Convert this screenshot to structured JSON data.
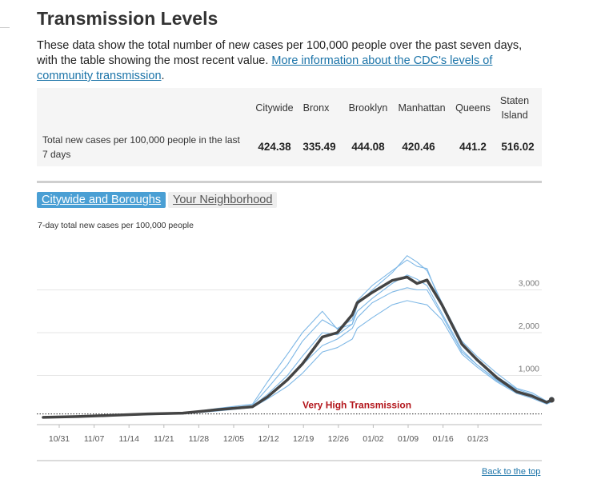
{
  "title": "Transmission Levels",
  "intro": {
    "text": "These data show the total number of new cases per 100,000 people over the past seven days, with the table showing the most recent value. ",
    "link": "More information about the CDC's levels of community transmission",
    "after": "."
  },
  "summary_table": {
    "row_label": "Total new cases per 100,000 people in the last 7 days",
    "columns": [
      "Citywide",
      "Bronx",
      "Brooklyn",
      "Manhattan",
      "Queens",
      "Staten Island"
    ],
    "values": [
      "424.38",
      "335.49",
      "444.08",
      "420.46",
      "441.2",
      "516.02"
    ]
  },
  "tabs": {
    "active": "Citywide and Boroughs",
    "inactive": "Your Neighborhood"
  },
  "chart_subtitle": "7-day total new cases per 100,000 people",
  "chart_data": {
    "type": "line",
    "ylabel": "7-day total new cases per 100,000 people",
    "yticks": [
      "1,000",
      "2,000",
      "3,000"
    ],
    "xticks": [
      "10/31",
      "11/07",
      "11/14",
      "11/21",
      "11/28",
      "12/05",
      "12/12",
      "12/19",
      "12/26",
      "01/02",
      "01/09",
      "01/16",
      "01/23"
    ],
    "ylim": [
      0,
      3300
    ],
    "threshold": {
      "value": 100,
      "label": "Very High Transmission",
      "style": "dotted"
    },
    "grid": true,
    "x_index": [
      0,
      7,
      14,
      21,
      28,
      35,
      42,
      45,
      49,
      52,
      56,
      59,
      62,
      63,
      66,
      70,
      73,
      75,
      77,
      80,
      84,
      87,
      91,
      95,
      98,
      101,
      102
    ],
    "series": [
      {
        "values": [
          20,
          40,
          70,
          100,
          120,
          200,
          270,
          500,
          900,
          1270,
          1900,
          2000,
          2420,
          2700,
          2940,
          3220,
          3300,
          3150,
          3230,
          2650,
          1730,
          1370,
          950,
          620,
          520,
          370,
          430
        ]
      },
      {
        "values": [
          22,
          40,
          70,
          100,
          120,
          230,
          330,
          850,
          1500,
          2000,
          2500,
          2080,
          2200,
          2650,
          3000,
          3400,
          3800,
          3650,
          3450,
          2700,
          1800,
          1450,
          1050,
          700,
          600,
          400,
          450
        ]
      },
      {
        "values": [
          20,
          38,
          65,
          90,
          110,
          210,
          300,
          700,
          1250,
          1800,
          2300,
          2100,
          2300,
          2750,
          3100,
          3450,
          3700,
          3550,
          3500,
          2600,
          1700,
          1350,
          970,
          680,
          560,
          380,
          420
        ]
      },
      {
        "values": [
          18,
          35,
          60,
          85,
          105,
          195,
          280,
          560,
          1000,
          1450,
          2000,
          1950,
          2200,
          2500,
          2800,
          3150,
          3350,
          3250,
          3100,
          2450,
          1600,
          1250,
          900,
          620,
          520,
          330,
          400
        ]
      },
      {
        "values": [
          20,
          38,
          65,
          90,
          110,
          200,
          270,
          520,
          900,
          1250,
          1700,
          1850,
          2100,
          2350,
          2700,
          2950,
          3050,
          3000,
          3000,
          2400,
          1550,
          1250,
          880,
          600,
          500,
          340,
          390
        ]
      },
      {
        "values": [
          15,
          30,
          55,
          80,
          100,
          170,
          250,
          450,
          750,
          1050,
          1550,
          1650,
          1850,
          2100,
          2350,
          2650,
          2750,
          2700,
          2650,
          2300,
          1500,
          1200,
          850,
          580,
          470,
          330,
          380
        ]
      }
    ]
  },
  "back_link": "Back to the top",
  "colors": {
    "citywide": "#444444",
    "boroughs": "#7fb8e6",
    "threshold_label": "#b3151b",
    "link": "#1a73a8",
    "tab_active": "#4a9fd4"
  }
}
